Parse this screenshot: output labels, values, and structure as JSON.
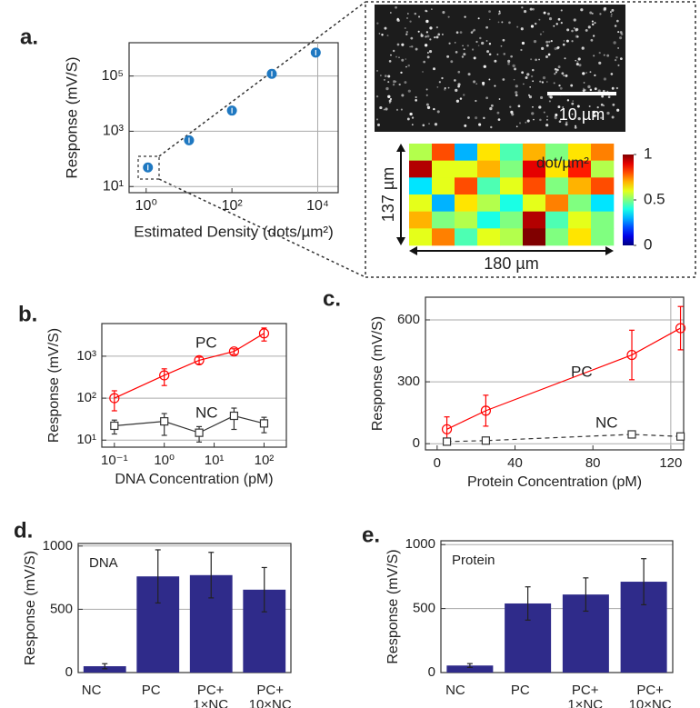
{
  "panel_labels": [
    "a.",
    "b.",
    "c.",
    "d.",
    "e."
  ],
  "chart_data": [
    {
      "type": "scatter",
      "xlabel": "Estimated Density (dots/µm²)",
      "ylabel": "Response (mV/S)",
      "xlog": true,
      "ylog": true,
      "xlim": [
        0.4,
        30000
      ],
      "ylim": [
        6,
        1600000
      ],
      "xticks": [
        {
          "value": 1,
          "label": "10⁰"
        },
        {
          "value": 100,
          "label": "10²"
        },
        {
          "value": 10000,
          "label": "10⁴"
        }
      ],
      "yticks": [
        {
          "value": 10,
          "label": "10¹"
        },
        {
          "value": 1000,
          "label": "10³"
        },
        {
          "value": 100000,
          "label": "10⁵"
        }
      ],
      "grid": "y",
      "x": [
        1.1,
        10,
        100,
        850,
        9000
      ],
      "series": [
        {
          "color": "#1f78c1",
          "marker": "dot",
          "values": [
            49,
            470,
            5600,
            120000,
            700000
          ]
        }
      ]
    },
    {
      "type": "image",
      "scale_bar_label": "10 µm"
    },
    {
      "type": "heatmap",
      "colormap": "jet",
      "zlim": [
        0,
        1
      ],
      "zticks": [
        0,
        0.5,
        1
      ],
      "colorbar_label": "dot/µm²",
      "height_label": "137 µm",
      "width_label": "180 µm",
      "values": [
        [
          0.55,
          0.8,
          0.3,
          0.65,
          0.45,
          0.7,
          0.5,
          0.65,
          0.75
        ],
        [
          0.95,
          0.6,
          0.6,
          0.7,
          0.5,
          0.9,
          0.65,
          0.85,
          0.55
        ],
        [
          0.35,
          0.6,
          0.8,
          0.45,
          0.6,
          0.8,
          0.5,
          0.7,
          0.8
        ],
        [
          0.6,
          0.3,
          0.65,
          0.55,
          0.4,
          0.6,
          0.75,
          0.5,
          0.35
        ],
        [
          0.7,
          0.5,
          0.55,
          0.4,
          0.5,
          0.95,
          0.45,
          0.6,
          0.5
        ],
        [
          0.6,
          0.75,
          0.45,
          0.6,
          0.55,
          1.0,
          0.5,
          0.65,
          0.5
        ]
      ]
    },
    {
      "type": "line",
      "xlabel": "DNA Concentration (pM)",
      "ylabel": "Response (mV/S)",
      "xlog": true,
      "ylog": true,
      "xlim": [
        0.056,
        280
      ],
      "ylim": [
        6.8,
        6000
      ],
      "xticks": [
        {
          "value": 0.1,
          "label": "10⁻¹"
        },
        {
          "value": 1,
          "label": "10⁰"
        },
        {
          "value": 10,
          "label": "10¹"
        },
        {
          "value": 100,
          "label": "10²"
        }
      ],
      "yticks": [
        {
          "value": 10,
          "label": "10¹"
        },
        {
          "value": 100,
          "label": "10²"
        },
        {
          "value": 1000,
          "label": "10³"
        }
      ],
      "grid": "y",
      "x": [
        0.1,
        1,
        5,
        25,
        100
      ],
      "series": [
        {
          "name": "PC",
          "color": "#ff0000",
          "marker": "circle",
          "values": [
            100,
            350,
            800,
            1300,
            3500
          ],
          "errors": [
            50,
            150,
            150,
            200,
            1200
          ]
        },
        {
          "name": "NC",
          "color": "#333333",
          "marker": "square",
          "values": [
            22,
            28,
            15,
            38,
            25
          ],
          "errors": [
            8,
            15,
            6,
            20,
            10
          ]
        }
      ]
    },
    {
      "type": "line",
      "xlabel": "Protein Concentration (pM)",
      "ylabel": "Response (mV/S)",
      "xlim": [
        -6,
        126.6
      ],
      "ylim": [
        -30,
        710
      ],
      "xticks": [
        0,
        40,
        80,
        120
      ],
      "yticks": [
        0,
        300,
        600
      ],
      "grid": "y",
      "x": [
        5,
        25,
        100,
        125
      ],
      "series": [
        {
          "name": "PC",
          "color": "#ff0000",
          "marker": "circle",
          "values": [
            70,
            160,
            430,
            560
          ],
          "errors": [
            60,
            75,
            120,
            105
          ]
        },
        {
          "name": "NC",
          "color": "#333333",
          "marker": "square",
          "dash": true,
          "values": [
            10,
            15,
            45,
            35
          ],
          "errors": [
            5,
            5,
            6,
            5
          ]
        }
      ]
    },
    {
      "type": "bar",
      "annotation": "DNA",
      "ylabel": "Response (mV/S)",
      "ylim": [
        0,
        1020
      ],
      "yticks": [
        0,
        500,
        1000
      ],
      "grid": "y",
      "color": "#2f2b8a",
      "categories": [
        "NC",
        "PC",
        "PC+\n1×NC",
        "PC+\n10×NC"
      ],
      "values": [
        50,
        760,
        770,
        655
      ],
      "errors": [
        20,
        210,
        180,
        175
      ]
    },
    {
      "type": "bar",
      "annotation": "Protein",
      "ylabel": "Response (mV/S)",
      "ylim": [
        0,
        1030
      ],
      "yticks": [
        0,
        500,
        1000
      ],
      "grid": "y",
      "color": "#2f2b8a",
      "categories": [
        "NC",
        "PC",
        "PC+\n1×NC",
        "PC+\n10×NC"
      ],
      "values": [
        55,
        540,
        610,
        710
      ],
      "errors": [
        15,
        130,
        130,
        180
      ]
    }
  ]
}
